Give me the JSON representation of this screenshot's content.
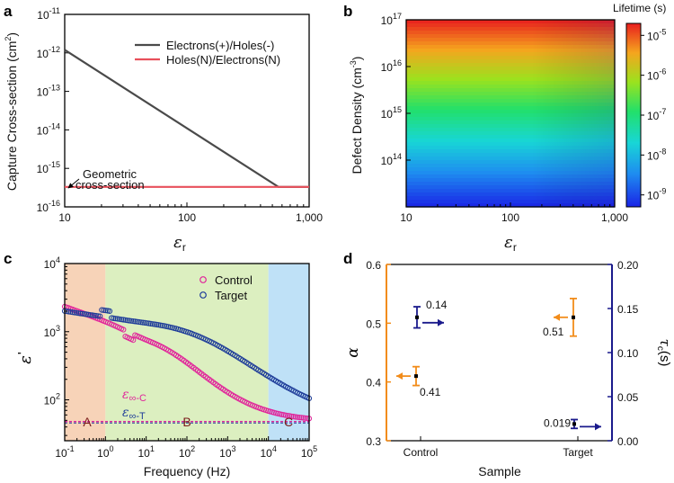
{
  "colors": {
    "dark_line": "#4a4a4a",
    "red_line": "#e8505b",
    "control": "#e0249a",
    "target": "#1f3d99",
    "orange": "#f28c1a",
    "navy": "#1a1a8c",
    "region_a": "#f7d3b8",
    "region_b": "#dcefc0",
    "region_c": "#bfe1f7"
  },
  "chart_data": [
    {
      "panel": "a",
      "type": "line",
      "xscale": "log",
      "yscale": "log",
      "xlim": [
        10,
        1000
      ],
      "ylim_exp": [
        -16,
        -11
      ],
      "xticks": [
        "10",
        "100",
        "1,000"
      ],
      "yticks_mant": [
        "10",
        "10",
        "10",
        "10",
        "10",
        "10"
      ],
      "yticks_exp": [
        "-16",
        "-15",
        "-14",
        "-13",
        "-12",
        "-11"
      ],
      "xlabel": "ε",
      "xlabel_sub": "r",
      "ylabel": "Capture Cross-section (cm",
      "ylabel_sup": "2",
      "ylabel_end": ")",
      "series": [
        {
          "name": "Electrons(+)/Holes(-)",
          "x": [
            10,
            560,
            1000
          ],
          "y": [
            1.2e-12,
            3.3e-16,
            3.3e-16
          ]
        },
        {
          "name": "Holes(N)/Electrons(N)",
          "x": [
            10,
            1000
          ],
          "y": [
            3.3e-16,
            3.3e-16
          ]
        }
      ],
      "annotation": [
        "Geometric",
        "cross-section"
      ]
    },
    {
      "panel": "b",
      "type": "heatmap",
      "xscale": "log",
      "yscale": "log",
      "xlim": [
        10,
        1000
      ],
      "ylim": [
        10000000000000.0,
        1e+17
      ],
      "xticks": [
        "10",
        "100",
        "1,000"
      ],
      "yticks_mant": [
        "10",
        "10",
        "10",
        "10"
      ],
      "yticks_exp": [
        "14",
        "15",
        "16",
        "17"
      ],
      "xlabel": "ε",
      "xlabel_sub": "r",
      "ylabel": "Defect Density (cm",
      "ylabel_sup": "-3",
      "ylabel_end": ")",
      "colorbar_title": "Lifetime (s)",
      "colorbar_range_exp": [
        -9.3,
        -4.7
      ],
      "colorbar_ticks_mant": [
        "10",
        "10",
        "10",
        "10",
        "10"
      ],
      "colorbar_ticks_exp": [
        "-5",
        "-6",
        "-7",
        "-8",
        "-9"
      ]
    },
    {
      "panel": "c",
      "type": "scatter",
      "xscale": "log",
      "yscale": "log",
      "xlim_exp": [
        -1,
        5
      ],
      "ylim_exp": [
        1.4,
        4
      ],
      "xticks_mant": [
        "10",
        "10",
        "10",
        "10",
        "10",
        "10",
        "10"
      ],
      "xticks_exp": [
        "-1",
        "0",
        "1",
        "2",
        "3",
        "4",
        "5"
      ],
      "yticks_mant": [
        "10",
        "10",
        "10"
      ],
      "yticks_exp": [
        "2",
        "3",
        "4"
      ],
      "xlabel": "Frequency (Hz)",
      "ylabel": "ε",
      "ylabel_prime": "'",
      "regions": [
        {
          "label": "A",
          "from_exp": -1,
          "to_exp": 0
        },
        {
          "label": "B",
          "from_exp": 0,
          "to_exp": 4
        },
        {
          "label": "C",
          "from_exp": 4,
          "to_exp": 5
        }
      ],
      "series": [
        {
          "name": "Control",
          "eps_inf": 48,
          "eps_s": 1050,
          "tau_exp": -2.3,
          "alpha": 0.41,
          "low_extra": 1350
        },
        {
          "name": "Target",
          "eps_inf": 48,
          "eps_s": 1550,
          "tau_exp": -3.2,
          "alpha": 0.51,
          "low_extra": 500
        }
      ],
      "eps_inf_labels": [
        {
          "name": "Control",
          "base": "ε",
          "sub": "∞-C"
        },
        {
          "name": "Target",
          "base": "ε",
          "sub": "∞-T"
        }
      ]
    },
    {
      "panel": "d",
      "type": "scatter",
      "categories": [
        "Control",
        "Target"
      ],
      "xlabel": "Sample",
      "ylabel_left": "α",
      "ylabel_right": "τ",
      "ylabel_right_sub": "c",
      "ylabel_right_end": "(s)",
      "ylim_left": [
        0.3,
        0.6
      ],
      "ylim_right": [
        0,
        0.2
      ],
      "yticks_left": [
        "0.3",
        "0.4",
        "0.5",
        "0.6"
      ],
      "yticks_right": [
        "0.00",
        "0.05",
        "0.10",
        "0.15",
        "0.20"
      ],
      "alpha": {
        "values": [
          0.41,
          0.51
        ],
        "errors": [
          0.016,
          0.032
        ],
        "labels": [
          "0.41",
          "0.51"
        ]
      },
      "tau": {
        "values": [
          0.14,
          0.019
        ],
        "errors": [
          0.012,
          0.005
        ],
        "labels": [
          "0.14",
          "0.019"
        ]
      }
    }
  ]
}
